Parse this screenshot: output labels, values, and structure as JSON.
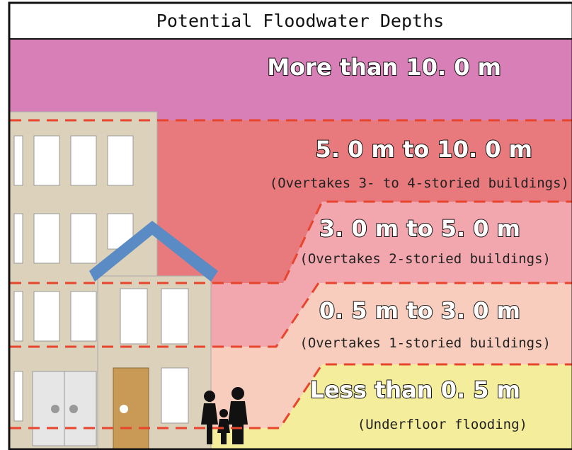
{
  "title": "Potential Floodwater Depths",
  "zones": [
    {
      "label": "More than 10. 0 m"
    },
    {
      "label": "5. 0 m to 10. 0 m",
      "note": "(Overtakes 3- to 4-storied buildings)"
    },
    {
      "label": "3. 0 m to 5. 0 m",
      "note": "(Overtakes 2-storied buildings)"
    },
    {
      "label": "0. 5 m to 3. 0 m",
      "note": "(Overtakes 1-storied buildings)"
    },
    {
      "label": "Less than 0. 5 m",
      "note": "(Underfloor flooding)"
    }
  ]
}
